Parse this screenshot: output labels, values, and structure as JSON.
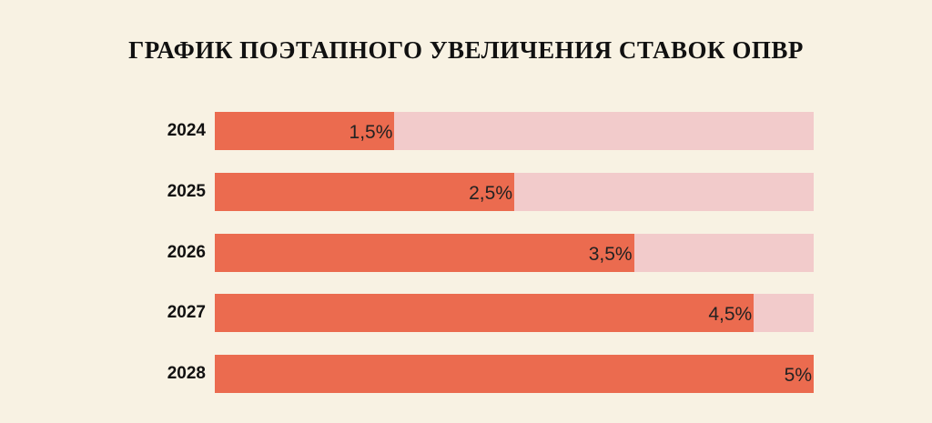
{
  "chart_data": {
    "type": "bar",
    "orientation": "horizontal",
    "title": "ГРАФИК ПОЭТАПНОГО УВЕЛИЧЕНИЯ СТАВОК ОПВР",
    "categories": [
      "2024",
      "2025",
      "2026",
      "2027",
      "2028"
    ],
    "values": [
      1.5,
      2.5,
      3.5,
      4.5,
      5
    ],
    "value_labels": [
      "1,5%",
      "2,5%",
      "3,5%",
      "4,5%",
      "5%"
    ],
    "unit": "%",
    "xlim": [
      0,
      5
    ],
    "grid": false,
    "legend": "none",
    "colors": {
      "bar": "#eb6b4f",
      "track": "#f2cbcb",
      "background": "#f8f2e3"
    }
  }
}
